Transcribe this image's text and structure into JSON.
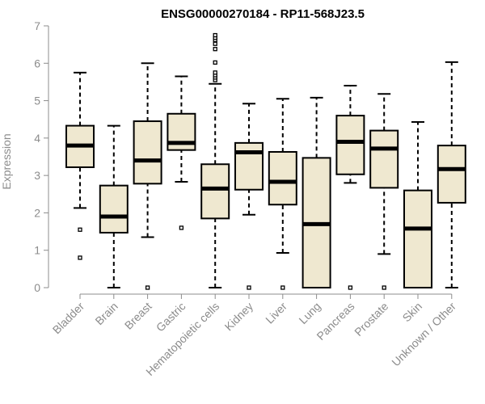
{
  "chart_data": {
    "type": "box",
    "title": "ENSG00000270184 - RP11-568J23.5",
    "xlabel": "",
    "ylabel": "Expression",
    "ylim": [
      0,
      7
    ],
    "yticks": [
      0,
      1,
      2,
      3,
      4,
      5,
      6,
      7
    ],
    "grid": false,
    "box_fill": "#efe8d0",
    "categories": [
      "Bladder",
      "Brain",
      "Breast",
      "Gastric",
      "Hematopoietic cells",
      "Kidney",
      "Liver",
      "Lung",
      "Pancreas",
      "Prostate",
      "Skin",
      "Unknown / Other"
    ],
    "boxes": [
      {
        "min": 2.13,
        "q1": 3.22,
        "median": 3.8,
        "q3": 4.33,
        "max": 5.75,
        "outliers": [
          1.55,
          0.8
        ]
      },
      {
        "min": 0.0,
        "q1": 1.47,
        "median": 1.9,
        "q3": 2.73,
        "max": 4.33,
        "outliers": []
      },
      {
        "min": 1.35,
        "q1": 2.78,
        "median": 3.4,
        "q3": 4.45,
        "max": 6.0,
        "outliers": [
          0.0
        ]
      },
      {
        "min": 2.83,
        "q1": 3.68,
        "median": 3.87,
        "q3": 4.65,
        "max": 5.65,
        "outliers": [
          1.6
        ]
      },
      {
        "min": 0.0,
        "q1": 1.85,
        "median": 2.65,
        "q3": 3.3,
        "max": 5.45,
        "outliers": [
          5.55,
          5.62,
          5.68,
          5.75,
          6.02,
          6.38,
          6.52,
          6.62,
          6.68,
          6.75
        ]
      },
      {
        "min": 1.95,
        "q1": 2.62,
        "median": 3.62,
        "q3": 3.87,
        "max": 4.92,
        "outliers": [
          0.0
        ]
      },
      {
        "min": 0.93,
        "q1": 2.22,
        "median": 2.83,
        "q3": 3.63,
        "max": 5.05,
        "outliers": [
          0.0
        ]
      },
      {
        "min": 0.0,
        "q1": 0.0,
        "median": 1.7,
        "q3": 3.47,
        "max": 5.08,
        "outliers": []
      },
      {
        "min": 2.8,
        "q1": 3.03,
        "median": 3.9,
        "q3": 4.6,
        "max": 5.4,
        "outliers": [
          0.0
        ]
      },
      {
        "min": 0.9,
        "q1": 2.67,
        "median": 3.72,
        "q3": 4.2,
        "max": 5.18,
        "outliers": [
          0.0
        ]
      },
      {
        "min": 0.0,
        "q1": 0.0,
        "median": 1.58,
        "q3": 2.6,
        "max": 4.43,
        "outliers": []
      },
      {
        "min": 0.0,
        "q1": 2.27,
        "median": 3.17,
        "q3": 3.8,
        "max": 6.03,
        "outliers": []
      }
    ]
  }
}
